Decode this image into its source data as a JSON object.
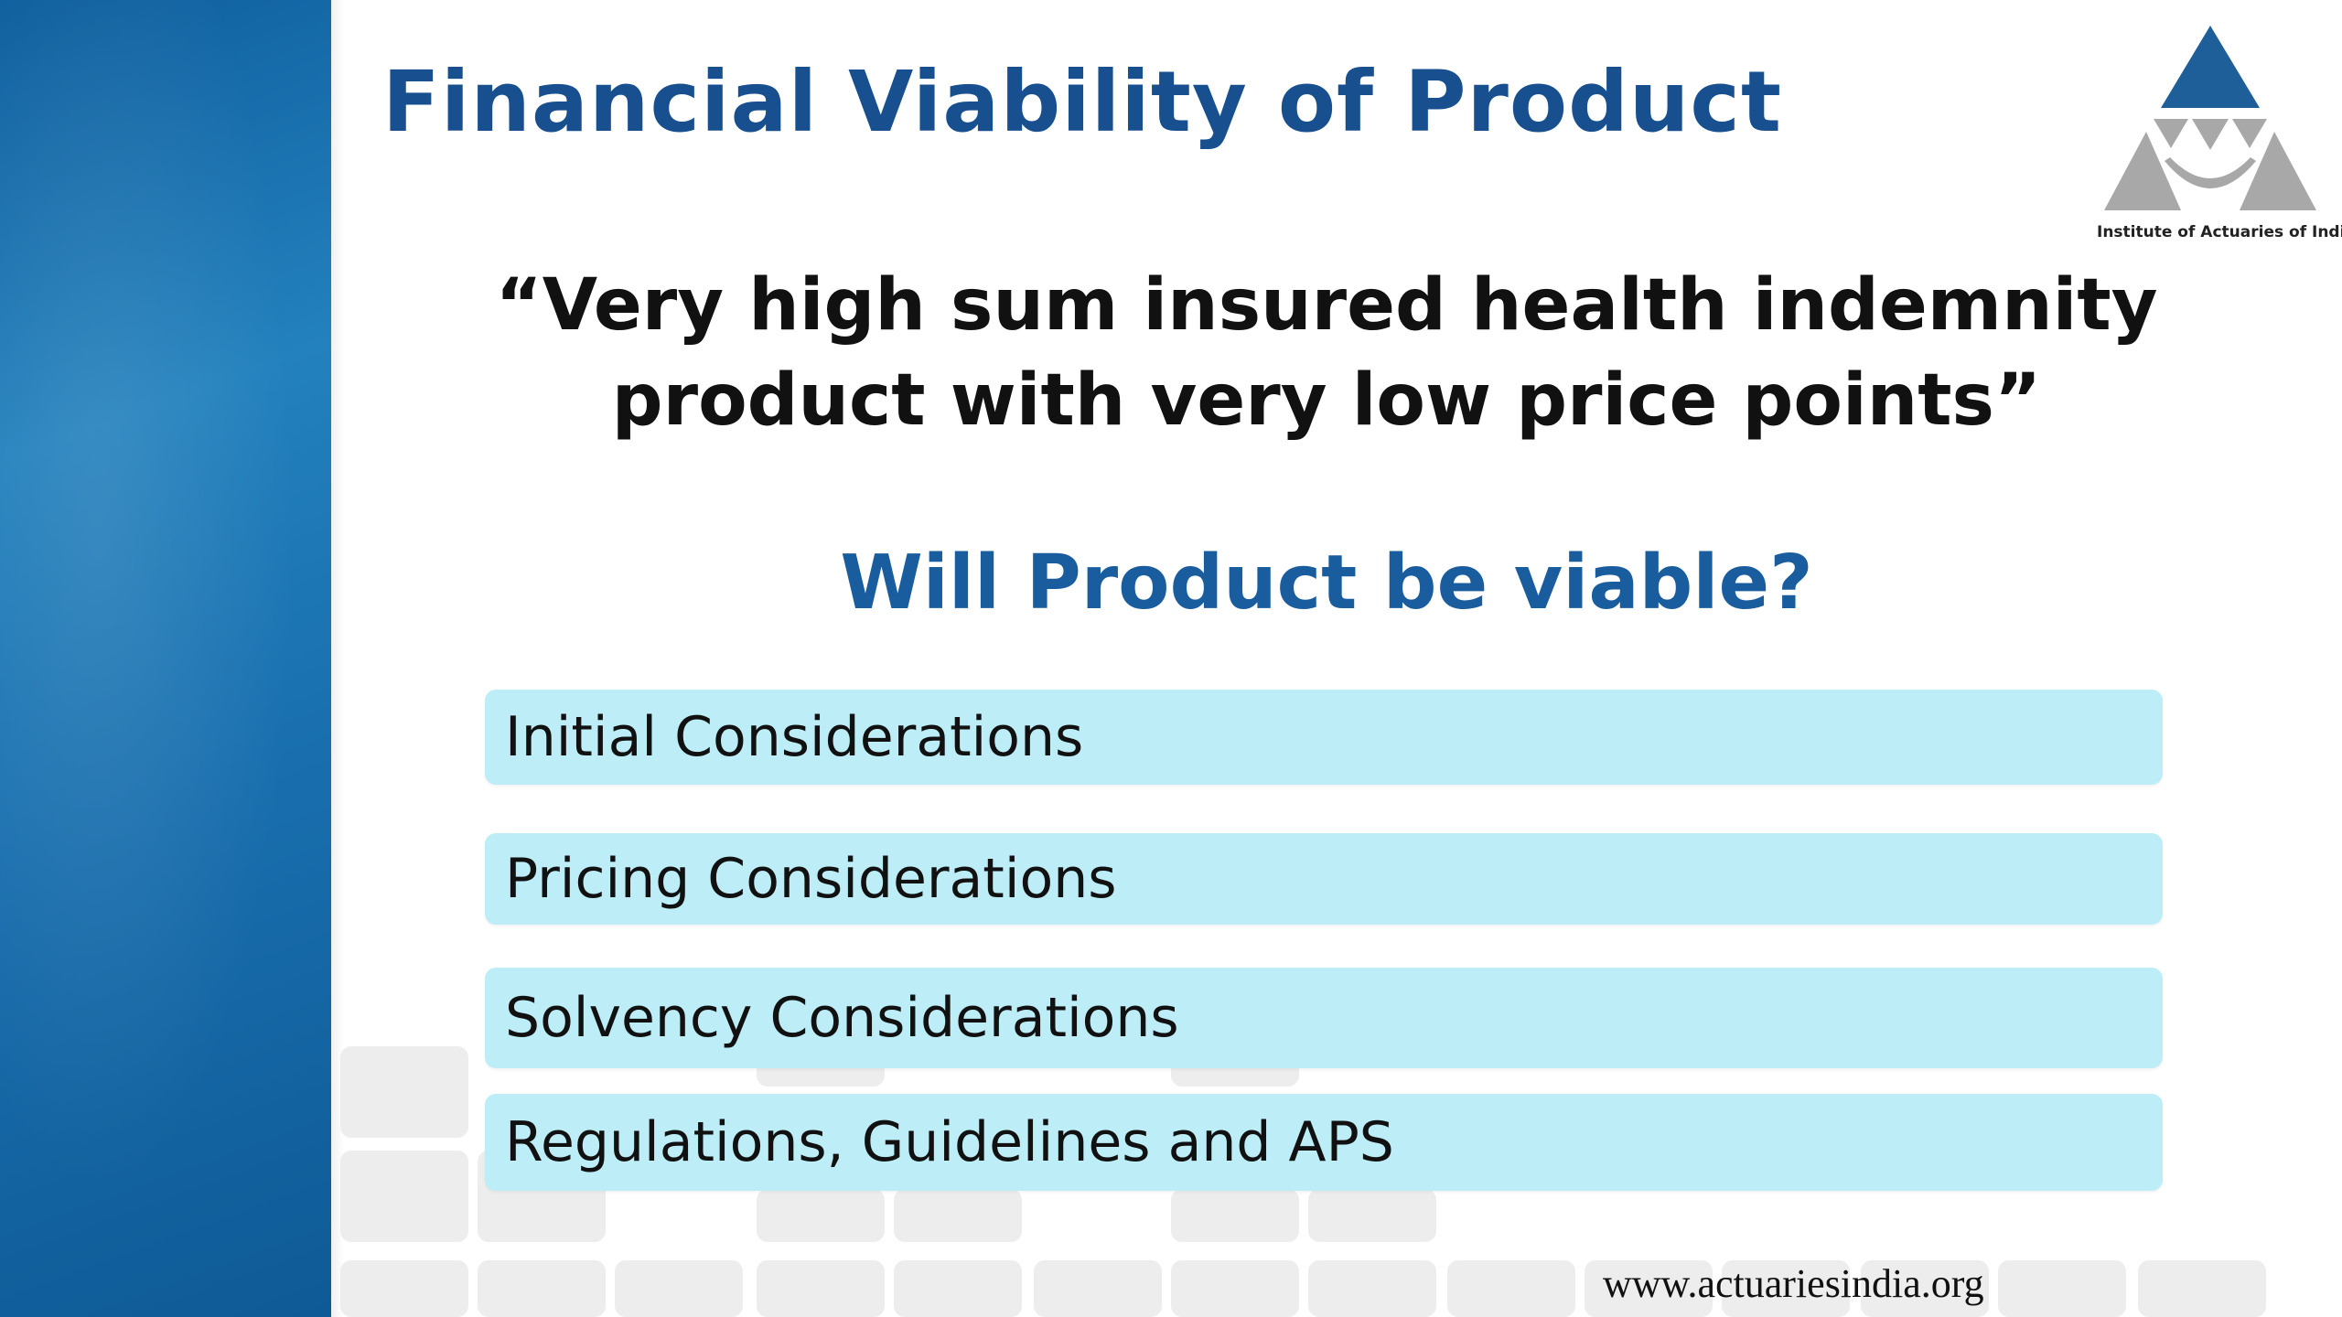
{
  "slide": {
    "title": "Financial Viability of Product",
    "quote_line1": "“Very high sum insured health indemnity",
    "quote_line2": "product with very low price points”",
    "question": "Will Product be viable?",
    "items": [
      "Initial Considerations",
      "Pricing Considerations",
      "Solvency Considerations",
      "Regulations, Guidelines and APS"
    ],
    "logo_text": "Institute of Actuaries of India",
    "footer_url": "www.actuariesindia.org"
  },
  "colors": {
    "title": "#174f8f",
    "question": "#1a5d9e",
    "item_bg": "#bdedf7",
    "band": "#196fae",
    "logo_blue": "#1f5f99",
    "logo_gray": "#a8a8a8"
  }
}
